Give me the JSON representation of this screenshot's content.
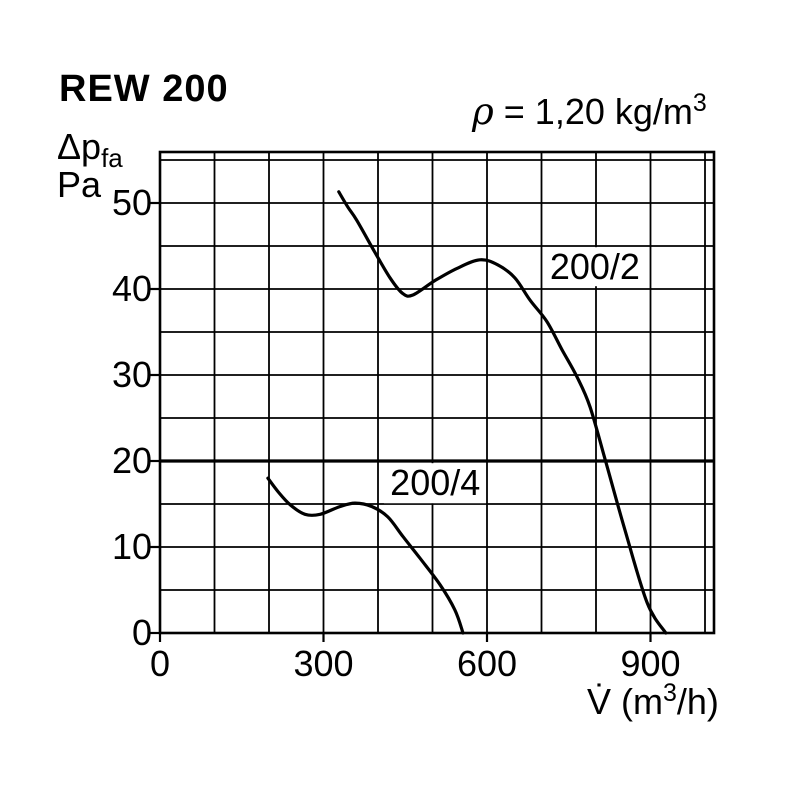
{
  "header": {
    "title": "REW 200",
    "density": {
      "symbol": "ρ",
      "text": " = 1,20 kg/m",
      "exponent": "3"
    }
  },
  "axes": {
    "y": {
      "label_main": "Δp",
      "label_sub": "fa",
      "unit": "Pa"
    },
    "x": {
      "label_v": "V̇",
      "label_mid": " (m",
      "label_exp": "3",
      "label_end": "/h)"
    }
  },
  "chart_data": {
    "type": "line",
    "title": "REW 200",
    "annotation": "ρ = 1,20 kg/m³",
    "xlabel": "V̇ (m³/h)",
    "ylabel": "Δp fa (Pa)",
    "x_ticks": [
      0,
      300,
      600,
      900
    ],
    "y_ticks": [
      0,
      10,
      20,
      30,
      40,
      50
    ],
    "x_grid": {
      "step": 100,
      "min": 0,
      "max": 1000
    },
    "y_grid": {
      "step": 5,
      "min": 0,
      "max": 55
    },
    "xlim": [
      0,
      1016
    ],
    "ylim": [
      0,
      56
    ],
    "grid": true,
    "legend_position": "inline-curve-labels",
    "series": [
      {
        "name": "200/2",
        "points": [
          [
            328,
            51.3
          ],
          [
            345,
            49.5
          ],
          [
            361,
            48.0
          ],
          [
            394,
            44.3
          ],
          [
            422,
            41.3
          ],
          [
            445,
            39.5
          ],
          [
            464,
            39.3
          ],
          [
            505,
            41.0
          ],
          [
            545,
            42.4
          ],
          [
            587,
            43.4
          ],
          [
            620,
            42.8
          ],
          [
            651,
            41.3
          ],
          [
            679,
            38.7
          ],
          [
            710,
            36.2
          ],
          [
            738,
            32.9
          ],
          [
            765,
            29.8
          ],
          [
            789,
            26.3
          ],
          [
            817,
            20.1
          ],
          [
            853,
            12.0
          ],
          [
            894,
            3.5
          ],
          [
            928,
            0
          ]
        ]
      },
      {
        "name": "200/4",
        "points": [
          [
            198,
            18.0
          ],
          [
            217,
            16.4
          ],
          [
            239,
            14.9
          ],
          [
            266,
            13.8
          ],
          [
            294,
            13.8
          ],
          [
            330,
            14.7
          ],
          [
            358,
            15.1
          ],
          [
            389,
            14.7
          ],
          [
            418,
            13.5
          ],
          [
            446,
            11.2
          ],
          [
            477,
            8.7
          ],
          [
            514,
            5.6
          ],
          [
            541,
            2.7
          ],
          [
            556,
            0
          ]
        ]
      }
    ],
    "curve_labels": [
      {
        "text": "200/2",
        "v": 798,
        "pa": 42.6
      },
      {
        "text": "200/4",
        "v": 505,
        "pa": 17.4
      }
    ]
  },
  "style": {
    "bg": "#ffffff",
    "line_color": "#000000",
    "grid_color": "#000000",
    "text_color": "#000000",
    "bold_gridline_pa": 20
  }
}
